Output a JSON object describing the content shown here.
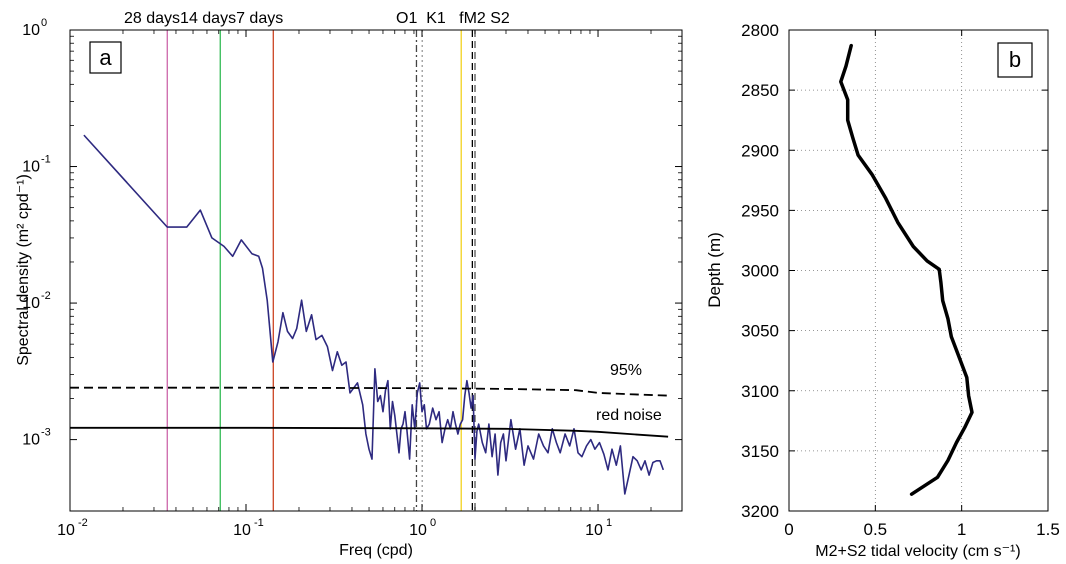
{
  "chart_data": [
    {
      "panel_label": "a",
      "type": "line",
      "xlabel": "Freq (cpd)",
      "ylabel": "Spectral density (m² cpd⁻¹)",
      "xscale": "log",
      "yscale": "log",
      "xlim": [
        0.01,
        30
      ],
      "ylim": [
        0.0003,
        1
      ],
      "xticks": [
        {
          "base": "10",
          "exp": "-2",
          "value": 0.01
        },
        {
          "base": "10",
          "exp": "-1",
          "value": 0.1
        },
        {
          "base": "10",
          "exp": "0",
          "value": 1
        },
        {
          "base": "10",
          "exp": "1",
          "value": 10
        }
      ],
      "yticks": [
        {
          "base": "10",
          "exp": "-3",
          "value": 0.001
        },
        {
          "base": "10",
          "exp": "-2",
          "value": 0.01
        },
        {
          "base": "10",
          "exp": "-1",
          "value": 0.1
        },
        {
          "base": "10",
          "exp": "0",
          "value": 1
        }
      ],
      "period_lines": [
        {
          "label": "28 days",
          "freq": 0.0357,
          "color": "#cc66aa"
        },
        {
          "label": "14 days",
          "freq": 0.0714,
          "color": "#33bb55"
        },
        {
          "label": "7 days",
          "freq": 0.1429,
          "color": "#cc4422"
        }
      ],
      "tidal_lines": [
        {
          "label": "O1",
          "freq": 0.93,
          "color": "#444444",
          "dash": "dashdot"
        },
        {
          "label": "K1",
          "freq": 1.0027,
          "color": "#999999",
          "dash": "dotted"
        },
        {
          "label": "f",
          "freq": 1.67,
          "color": "#f2d21e",
          "dash": "solid"
        },
        {
          "label": "M2",
          "freq": 1.932,
          "color": "#000000",
          "dash": "dashed"
        },
        {
          "label": "S2",
          "freq": 2.0,
          "color": "#555555",
          "dash": "dashed"
        }
      ],
      "series": [
        {
          "name": "spectrum",
          "color": "#2e2a80",
          "x": [
            0.012,
            0.0357,
            0.046,
            0.055,
            0.064,
            0.075,
            0.084,
            0.094,
            0.108,
            0.118,
            0.124,
            0.132,
            0.142,
            0.152,
            0.162,
            0.172,
            0.184,
            0.194,
            0.207,
            0.22,
            0.236,
            0.25,
            0.27,
            0.29,
            0.31,
            0.33,
            0.35,
            0.37,
            0.39,
            0.41,
            0.43,
            0.46,
            0.48,
            0.5,
            0.52,
            0.54,
            0.56,
            0.58,
            0.6,
            0.62,
            0.64,
            0.66,
            0.68,
            0.7,
            0.72,
            0.74,
            0.76,
            0.78,
            0.8,
            0.82,
            0.85,
            0.88,
            0.91,
            0.94,
            0.97,
            1.0,
            1.03,
            1.06,
            1.1,
            1.15,
            1.2,
            1.25,
            1.3,
            1.35,
            1.4,
            1.45,
            1.5,
            1.55,
            1.6,
            1.65,
            1.7,
            1.75,
            1.8,
            1.85,
            1.9,
            1.95,
            2.0,
            2.05,
            2.1,
            2.2,
            2.3,
            2.4,
            2.5,
            2.6,
            2.7,
            2.8,
            2.9,
            3.0,
            3.2,
            3.4,
            3.6,
            3.8,
            4.0,
            4.3,
            4.6,
            4.9,
            5.2,
            5.5,
            5.8,
            6.1,
            6.5,
            6.9,
            7.3,
            7.7,
            8.1,
            8.6,
            9.1,
            9.6,
            10.2,
            10.8,
            11.4,
            12.0,
            12.7,
            13.4,
            14.2,
            15.0,
            15.8,
            16.7,
            17.6,
            18.5,
            19.5,
            20.5,
            21.5,
            22.5,
            23.5
          ],
          "y": [
            0.17,
            0.036,
            0.036,
            0.048,
            0.03,
            0.026,
            0.022,
            0.029,
            0.023,
            0.022,
            0.018,
            0.0105,
            0.0037,
            0.0052,
            0.0085,
            0.0062,
            0.0055,
            0.0065,
            0.0105,
            0.0062,
            0.0082,
            0.0054,
            0.0058,
            0.0048,
            0.0032,
            0.0044,
            0.0035,
            0.0037,
            0.0022,
            0.0024,
            0.0026,
            0.0018,
            0.0011,
            0.00085,
            0.00072,
            0.0033,
            0.0019,
            0.0021,
            0.0016,
            0.0023,
            0.0027,
            0.0012,
            0.0019,
            0.0015,
            0.0011,
            0.0008,
            0.0012,
            0.0013,
            0.0016,
            0.0012,
            0.00072,
            0.0018,
            0.0012,
            0.0022,
            0.0026,
            0.0016,
            0.0018,
            0.0012,
            0.0013,
            0.0017,
            0.0014,
            0.0016,
            0.00095,
            0.0012,
            0.0014,
            0.0012,
            0.0016,
            0.0013,
            0.0011,
            0.0013,
            0.0014,
            0.0021,
            0.0027,
            0.0022,
            0.0017,
            0.0021,
            0.00072,
            0.00115,
            0.0013,
            0.00095,
            0.0008,
            0.0013,
            0.00075,
            0.0011,
            0.00055,
            0.00095,
            0.0011,
            0.0007,
            0.0014,
            0.00085,
            0.0012,
            0.00065,
            0.0009,
            0.00072,
            0.0011,
            0.0009,
            0.0008,
            0.0012,
            0.00095,
            0.0008,
            0.0011,
            0.0009,
            0.0012,
            0.0008,
            0.00075,
            0.0009,
            0.001,
            0.00085,
            0.00095,
            0.00078,
            0.0006,
            0.00085,
            0.00065,
            0.0009,
            0.0004,
            0.00055,
            0.00075,
            0.0007,
            0.0006,
            0.0007,
            0.00055,
            0.00068,
            0.0007,
            0.0007,
            0.0006
          ]
        },
        {
          "name": "95%",
          "color": "#000000",
          "x": [
            0.01,
            0.1,
            1,
            3,
            7.5,
            10,
            15,
            25
          ],
          "y": [
            0.0024,
            0.0024,
            0.00238,
            0.00235,
            0.0023,
            0.0022,
            0.00215,
            0.0021
          ]
        },
        {
          "name": "red noise",
          "color": "#000000",
          "x": [
            0.01,
            0.1,
            1,
            3,
            7.5,
            10,
            15,
            25
          ],
          "y": [
            0.00122,
            0.00122,
            0.00121,
            0.0012,
            0.00116,
            0.00114,
            0.0011,
            0.00105
          ]
        }
      ]
    },
    {
      "panel_label": "b",
      "type": "line",
      "xlabel": "M2+S2 tidal velocity (cm s⁻¹)",
      "ylabel": "Depth (m)",
      "xlim": [
        0,
        1.5
      ],
      "ylim": [
        2800,
        3200
      ],
      "y_reversed": true,
      "xticks": [
        "0",
        "0.5",
        "1",
        "1.5"
      ],
      "yticks": [
        "2800",
        "2850",
        "2900",
        "2950",
        "3000",
        "3050",
        "3100",
        "3150",
        "3200"
      ],
      "grid": true,
      "series": [
        {
          "name": "",
          "color": "#000000",
          "x": [
            0.36,
            0.33,
            0.3,
            0.34,
            0.34,
            0.37,
            0.4,
            0.48,
            0.56,
            0.63,
            0.72,
            0.8,
            0.87,
            0.88,
            0.89,
            0.92,
            0.94,
            0.98,
            1.03,
            1.04,
            1.06,
            1.02,
            0.97,
            0.92,
            0.86,
            0.71
          ],
          "y": [
            2813,
            2830,
            2843,
            2858,
            2875,
            2890,
            2904,
            2920,
            2940,
            2960,
            2980,
            2992,
            2999,
            3010,
            3025,
            3040,
            3055,
            3070,
            3089,
            3104,
            3118,
            3130,
            3143,
            3158,
            3172,
            3186
          ]
        }
      ]
    }
  ],
  "labels": {
    "period_header": "28 days14 days7 days",
    "tidal_header": "O1  K1   fM2 S2",
    "curve_95": "95%",
    "curve_red": "red noise"
  }
}
